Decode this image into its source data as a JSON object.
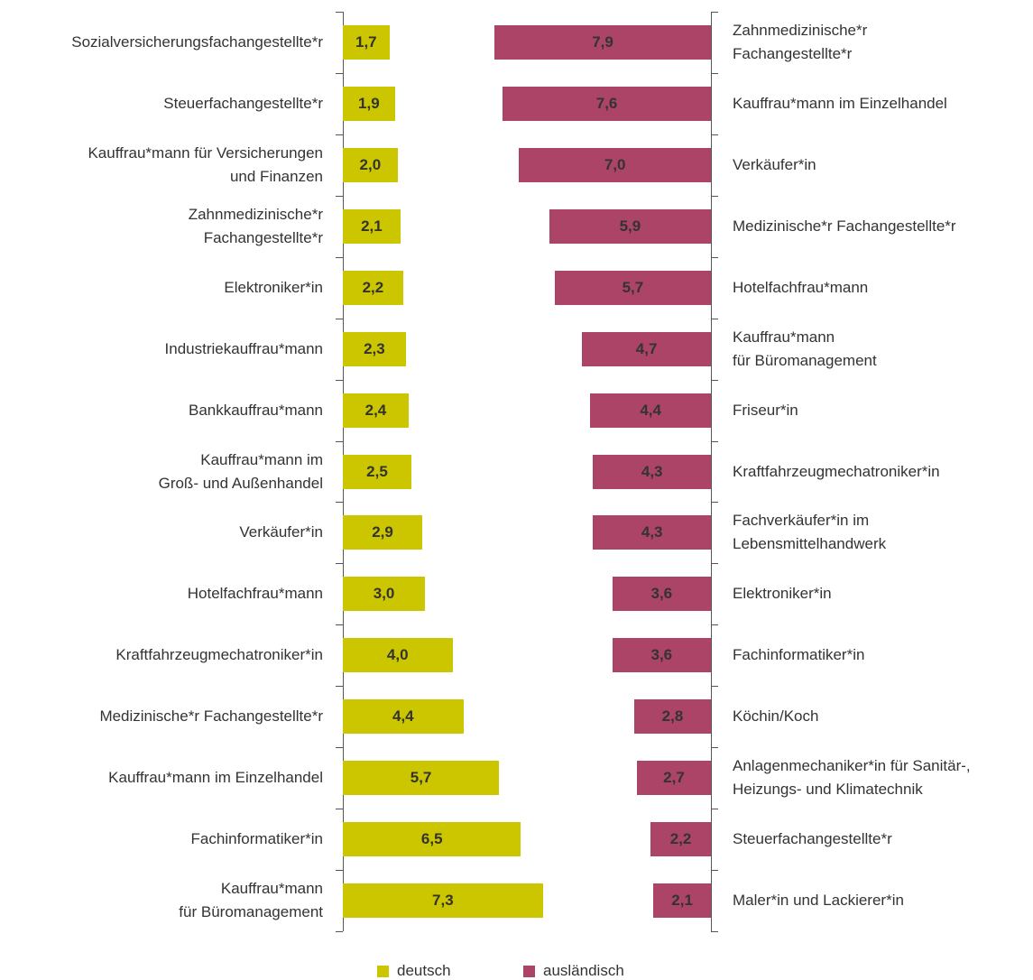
{
  "chart_data": [
    {
      "type": "bar",
      "categories": [
        "Sozialversicherungsfachangestellte*r",
        "Steuerfachangestellte*r",
        "Kauffrau*mann für Versicherungen\nund Finanzen",
        "Zahnmedizinische*r\nFachangestellte*r",
        "Elektroniker*in",
        "Industriekauffrau*mann",
        "Bankkauffrau*mann",
        "Kauffrau*mann im\nGroß- und Außenhandel",
        "Verkäufer*in",
        "Hotelfachfrau*mann",
        "Kraftfahrzeugmechatroniker*in",
        "Medizinische*r Fachangestellte*r",
        "Kauffrau*mann im Einzelhandel",
        "Fachinformatiker*in",
        "Kauffrau*mann\nfür Büromanagement"
      ],
      "series": [
        {
          "name": "deutsch",
          "color": "#cbc600",
          "values": [
            1.7,
            1.9,
            2.0,
            2.1,
            2.2,
            2.3,
            2.4,
            2.5,
            2.9,
            3.0,
            4.0,
            4.4,
            5.7,
            6.5,
            7.3
          ],
          "value_labels": [
            "1,7",
            "1,9",
            "2,0",
            "2,1",
            "2,2",
            "2,3",
            "2,4",
            "2,5",
            "2,9",
            "3,0",
            "4,0",
            "4,4",
            "5,7",
            "6,5",
            "7,3"
          ]
        }
      ],
      "xlim": [
        0,
        8
      ]
    },
    {
      "type": "bar",
      "categories": [
        "Zahnmedizinische*r\nFachangestellte*r",
        "Kauffrau*mann im Einzelhandel",
        "Verkäufer*in",
        "Medizinische*r Fachangestellte*r",
        "Hotelfachfrau*mann",
        "Kauffrau*mann\nfür Büromanagement",
        "Friseur*in",
        "Kraftfahrzeugmechatroniker*in",
        "Fachverkäufer*in im\nLebensmittelhandwerk",
        "Elektroniker*in",
        "Fachinformatiker*in",
        "Köchin/Koch",
        "Anlagenmechaniker*in für Sanitär-,\nHeizungs- und Klimatechnik",
        "Steuerfachangestellte*r",
        "Maler*in und Lackierer*in"
      ],
      "series": [
        {
          "name": "ausländisch",
          "color": "#ac4467",
          "values": [
            7.9,
            7.6,
            7.0,
            5.9,
            5.7,
            4.7,
            4.4,
            4.3,
            4.3,
            3.6,
            3.6,
            2.8,
            2.7,
            2.2,
            2.1
          ],
          "value_labels": [
            "7,9",
            "7,6",
            "7,0",
            "5,9",
            "5,7",
            "4,7",
            "4,4",
            "4,3",
            "4,3",
            "3,6",
            "3,6",
            "2,8",
            "2,7",
            "2,2",
            "2,1"
          ]
        }
      ],
      "xlim": [
        0,
        8
      ]
    }
  ]
}
